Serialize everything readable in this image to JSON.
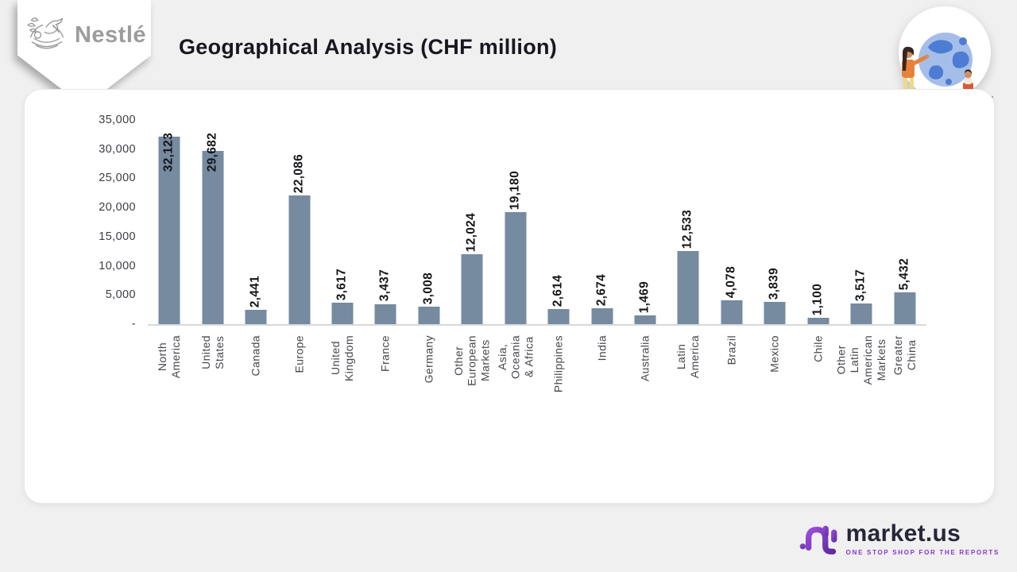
{
  "header": {
    "brand": "Nestlé",
    "title": "Geographical Analysis (CHF million)"
  },
  "chart_data": {
    "type": "bar",
    "title": "Geographical Analysis (CHF million)",
    "unit": "CHF million",
    "categories": [
      "North America",
      "United States",
      "Canada",
      "Europe",
      "United Kingdom",
      "France",
      "Germany",
      "Other European Markets",
      "Asia, Oceania & Africa",
      "Philippines",
      "India",
      "Australia",
      "Latin America",
      "Brazil",
      "Mexico",
      "Chile",
      "Other Latin American\nMarkets",
      "Greater China"
    ],
    "values": [
      32123,
      29682,
      2441,
      22086,
      3617,
      3437,
      3008,
      12024,
      19180,
      2614,
      2674,
      1469,
      12533,
      4078,
      3839,
      1100,
      3517,
      5432
    ],
    "value_labels": [
      "32,123",
      "29,682",
      "2,441",
      "22,086",
      "3,617",
      "3,437",
      "3,008",
      "12,024",
      "19,180",
      "2,614",
      "2,674",
      "1,469",
      "12,533",
      "4,078",
      "3,839",
      "1,100",
      "3,517",
      "5,432"
    ],
    "ylim": [
      0,
      35000
    ],
    "yticks": [
      {
        "value": 35000,
        "label": "35,000"
      },
      {
        "value": 30000,
        "label": "30,000"
      },
      {
        "value": 25000,
        "label": "25,000"
      },
      {
        "value": 20000,
        "label": "20,000"
      },
      {
        "value": 15000,
        "label": "15,000"
      },
      {
        "value": 10000,
        "label": "10,000"
      },
      {
        "value": 5000,
        "label": "5,000"
      },
      {
        "value": 0,
        "label": "-"
      }
    ],
    "grid": false,
    "legend": "none",
    "bar_color": "#768AA0"
  },
  "footer": {
    "brand": "market.us",
    "tagline": "ONE STOP SHOP FOR THE REPORTS"
  },
  "icons": {
    "badge": "nestle-bird-nest-icon",
    "illustration": "globe-with-people-pin",
    "footer_mark": "marketus-m-icon"
  },
  "colors": {
    "background": "#F0F0F1",
    "card": "#FFFFFF",
    "bar": "#768AA0",
    "title_text": "#17171F",
    "axis_line": "#D9D9D9",
    "tick_text": "#3D3D44",
    "category_text": "#46464E",
    "value_text": "#15151A",
    "nestle_gray": "#9C9C9C",
    "marketus_dark": "#26263A",
    "marketus_purple": "#8B35CC"
  }
}
